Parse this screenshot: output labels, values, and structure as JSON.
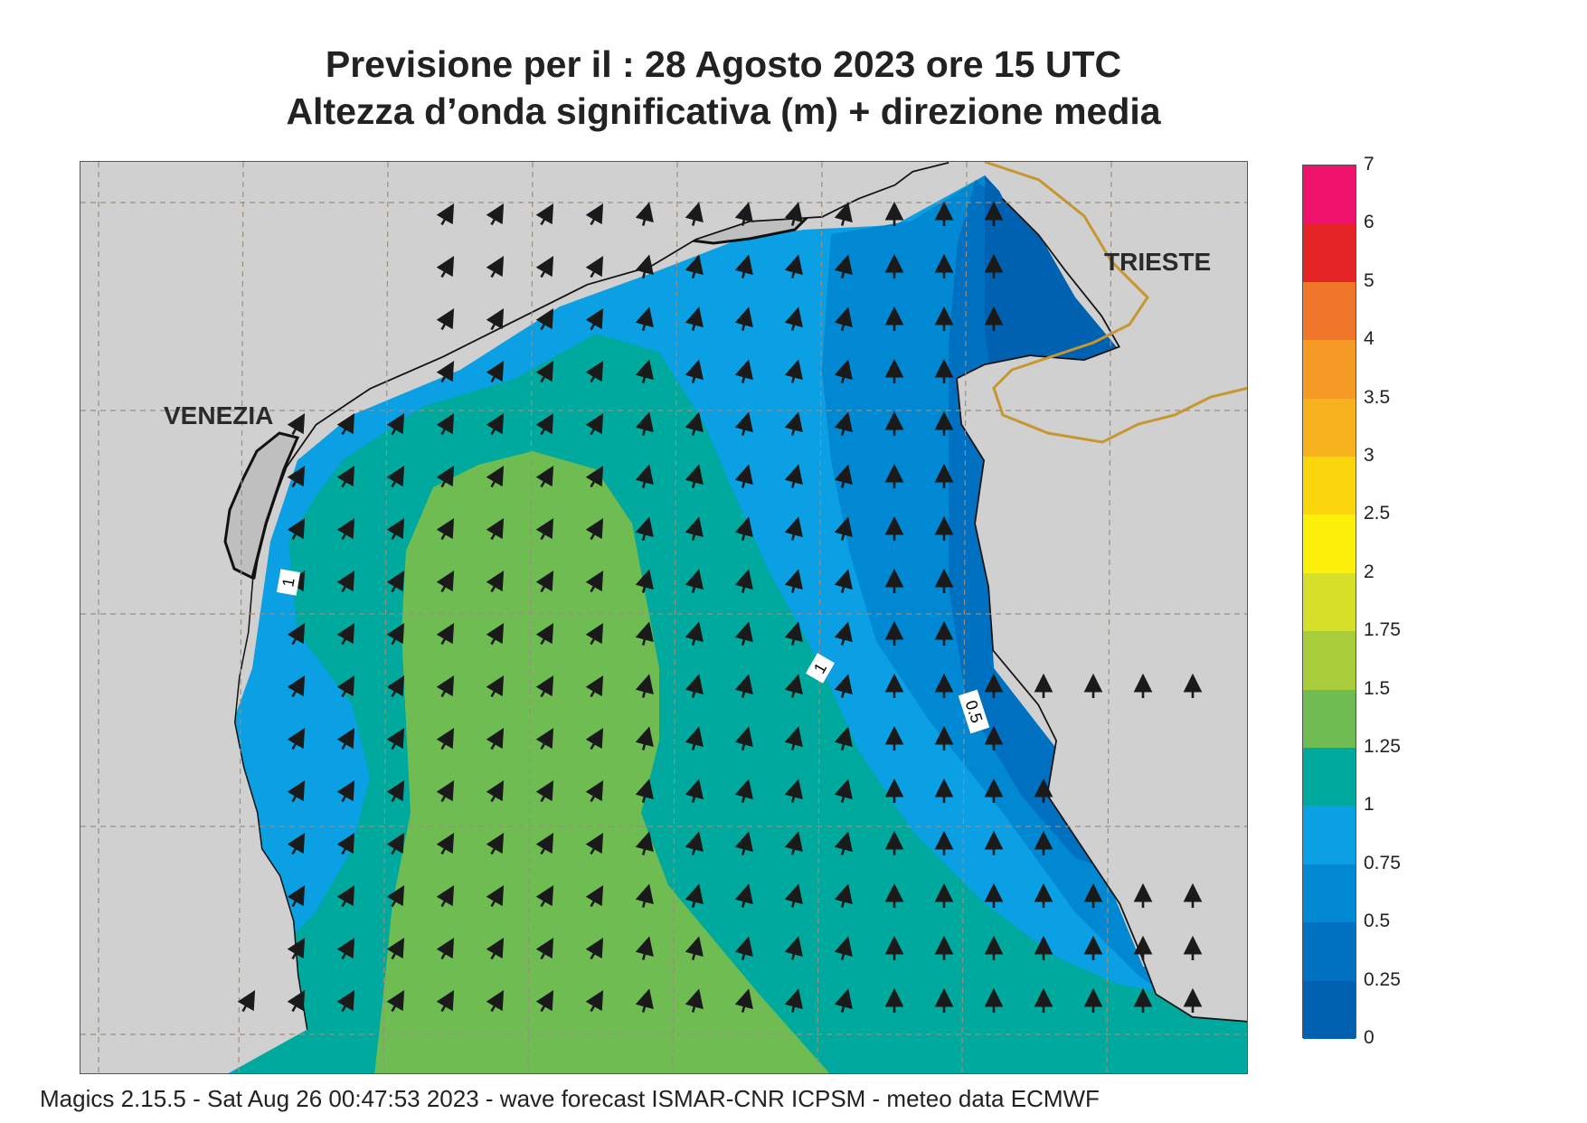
{
  "title": {
    "line1": "Previsione per il  :  28   Agosto  2023   ore 15 UTC",
    "line2": "Altezza d’onda significativa (m) + direzione media"
  },
  "map": {
    "cities": [
      "VENEZIA",
      "TRIESTE"
    ],
    "contour_labels": [
      "1",
      "1",
      "0.5"
    ],
    "colors": {
      "land": "#d0d0d0",
      "coastline": "#111111",
      "border": "#c8962e",
      "arrow": "#1a1a1a",
      "grid": "#9a8e7e"
    },
    "arrow_direction": "north / north-west",
    "icons": [
      "arrow-icon"
    ]
  },
  "legend": {
    "labels": [
      "7",
      "6",
      "5",
      "4",
      "3.5",
      "3",
      "2.5",
      "2",
      "1.75",
      "1.5",
      "1.25",
      "1",
      "0.75",
      "0.5",
      "0.25",
      "0"
    ],
    "colors": [
      "#f0136b",
      "#e52426",
      "#f0762a",
      "#f59a25",
      "#f8b21e",
      "#fbd60c",
      "#fdf00a",
      "#d7e028",
      "#a9cc3a",
      "#6fbd52",
      "#00a99d",
      "#0b9fe3",
      "#0088d2",
      "#0071c0",
      "#0061b0"
    ]
  },
  "footer": "Magics 2.15.5 - Sat Aug 26 00:47:53 2023 - wave forecast  ISMAR-CNR  ICPSM - meteo data   ECMWF"
}
